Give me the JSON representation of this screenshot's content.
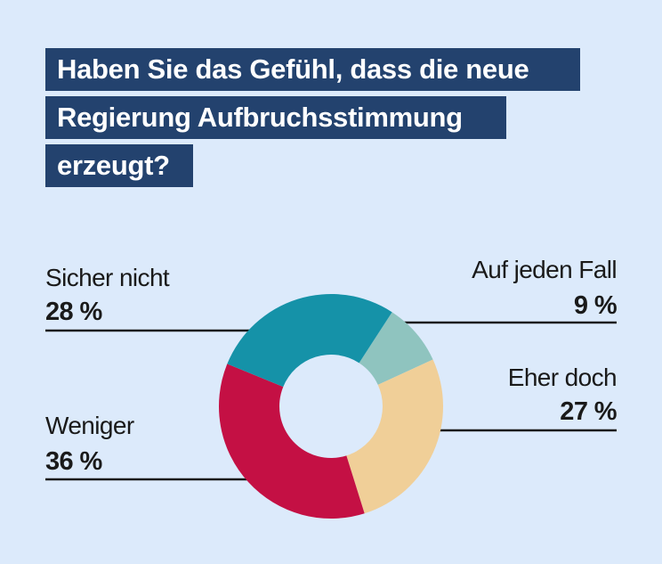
{
  "title_lines": [
    "Haben Sie das Gefühl, dass die neue",
    "Regierung Aufbruchsstimmung",
    "erzeugt?"
  ],
  "chart_data": {
    "type": "pie",
    "donut": true,
    "title": "Haben Sie das Gefühl, dass die neue Regierung Aufbruchsstimmung erzeugt?",
    "slices": [
      {
        "label": "Auf jeden Fall",
        "value": 9,
        "value_label": "9 %",
        "color": "#8fc4bf"
      },
      {
        "label": "Eher doch",
        "value": 27,
        "value_label": "27 %",
        "color": "#f0cf98"
      },
      {
        "label": "Weniger",
        "value": 36,
        "value_label": "36 %",
        "color": "#c41044"
      },
      {
        "label": "Sicher nicht",
        "value": 28,
        "value_label": "28 %",
        "color": "#1592a8"
      }
    ]
  },
  "colors": {
    "background": "#dceafb",
    "title_background": "#23426e",
    "title_text": "#ffffff",
    "leader_line": "#1a1a1a"
  }
}
